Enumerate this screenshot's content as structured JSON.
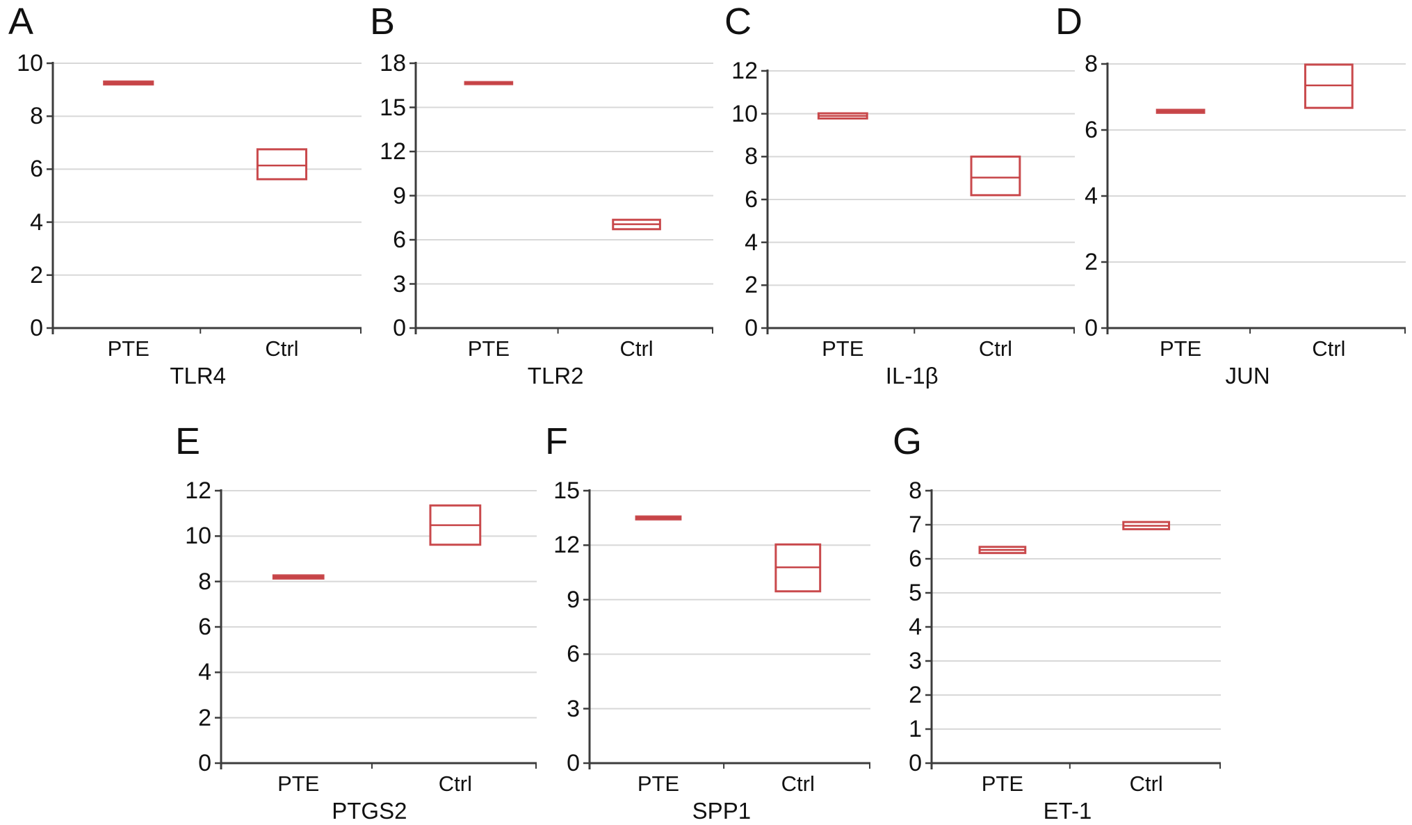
{
  "figure": {
    "background": "#ffffff",
    "description": "Seven box plots comparing PTE vs Ctrl expression"
  },
  "chart_data": {
    "type": "box",
    "group_labels": [
      "PTE",
      "Ctrl"
    ],
    "legend_position": "none",
    "grid": true,
    "panels": [
      {
        "letter": "A",
        "gene": "TLR4",
        "ylim": [
          0,
          10
        ],
        "yticks": [
          0,
          2,
          4,
          6,
          8,
          10
        ],
        "groups": [
          {
            "label": "PTE",
            "q1": 9.2,
            "median": 9.25,
            "q3": 9.31
          },
          {
            "label": "Ctrl",
            "q1": 5.62,
            "median": 6.14,
            "q3": 6.75
          }
        ]
      },
      {
        "letter": "B",
        "gene": "TLR2",
        "ylim": [
          0,
          18
        ],
        "yticks": [
          0,
          3,
          6,
          9,
          12,
          15,
          18
        ],
        "groups": [
          {
            "label": "PTE",
            "q1": 16.58,
            "median": 16.65,
            "q3": 16.72
          },
          {
            "label": "Ctrl",
            "q1": 6.72,
            "median": 7.06,
            "q3": 7.36
          }
        ]
      },
      {
        "letter": "C",
        "gene": "IL-1β",
        "ylim": [
          0,
          12
        ],
        "yticks": [
          0,
          2,
          4,
          6,
          8,
          10,
          12
        ],
        "groups": [
          {
            "label": "PTE",
            "q1": 9.78,
            "median": 9.9,
            "q3": 10.02
          },
          {
            "label": "Ctrl",
            "q1": 6.2,
            "median": 7.02,
            "q3": 8.0
          }
        ]
      },
      {
        "letter": "D",
        "gene": "JUN",
        "ylim": [
          0,
          8
        ],
        "yticks": [
          0,
          2,
          4,
          6,
          8
        ],
        "groups": [
          {
            "label": "PTE",
            "q1": 6.52,
            "median": 6.56,
            "q3": 6.61
          },
          {
            "label": "Ctrl",
            "q1": 6.67,
            "median": 7.35,
            "q3": 7.98
          }
        ]
      },
      {
        "letter": "E",
        "gene": "PTGS2",
        "ylim": [
          0,
          12
        ],
        "yticks": [
          0,
          2,
          4,
          6,
          8,
          10,
          12
        ],
        "groups": [
          {
            "label": "PTE",
            "q1": 8.13,
            "median": 8.2,
            "q3": 8.27
          },
          {
            "label": "Ctrl",
            "q1": 9.62,
            "median": 10.48,
            "q3": 11.35
          }
        ]
      },
      {
        "letter": "F",
        "gene": "SPP1",
        "ylim": [
          0,
          15
        ],
        "yticks": [
          0,
          3,
          6,
          9,
          12,
          15
        ],
        "groups": [
          {
            "label": "PTE",
            "q1": 13.42,
            "median": 13.5,
            "q3": 13.58
          },
          {
            "label": "Ctrl",
            "q1": 9.46,
            "median": 10.78,
            "q3": 12.04
          }
        ]
      },
      {
        "letter": "G",
        "gene": "ET-1",
        "ylim": [
          0,
          8
        ],
        "yticks": [
          0,
          1,
          2,
          3,
          4,
          5,
          6,
          7,
          8
        ],
        "groups": [
          {
            "label": "PTE",
            "q1": 6.17,
            "median": 6.26,
            "q3": 6.35
          },
          {
            "label": "Ctrl",
            "q1": 6.87,
            "median": 6.97,
            "q3": 7.08
          }
        ]
      }
    ],
    "colors": {
      "box_stroke": "#c9494c",
      "median": "#c64346",
      "grid": "#d8d8d8",
      "axis": "#3c3c3c",
      "text": "#111111"
    }
  }
}
